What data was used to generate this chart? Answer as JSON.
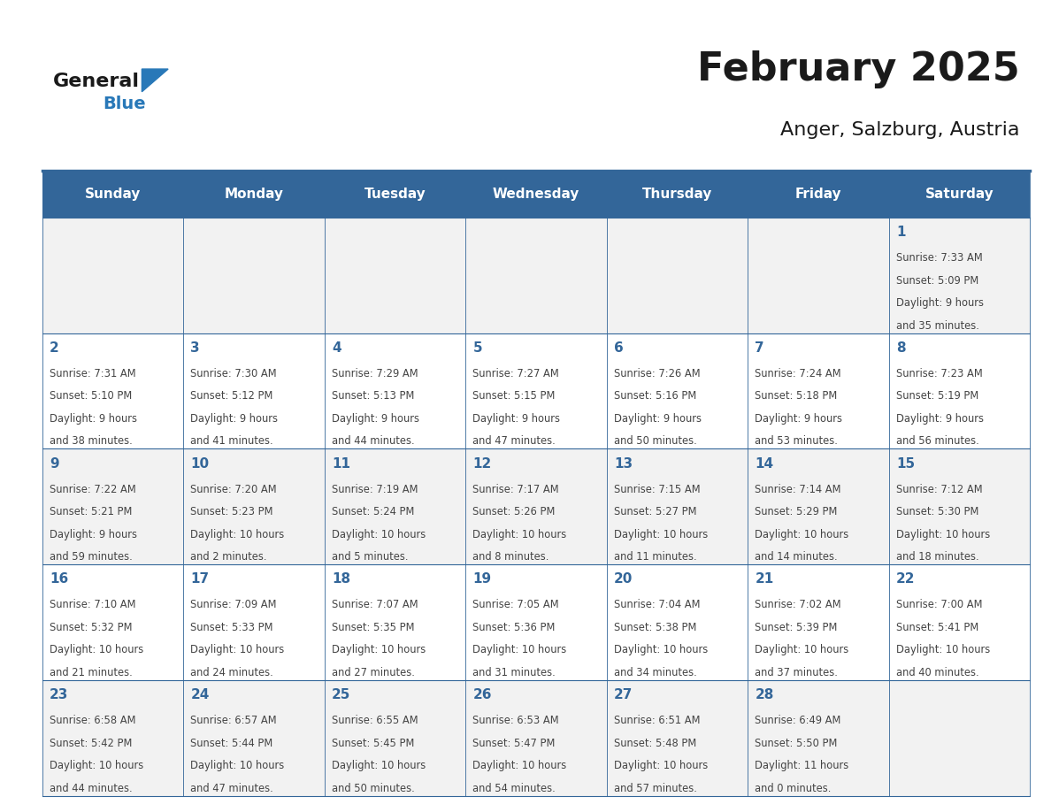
{
  "title": "February 2025",
  "subtitle": "Anger, Salzburg, Austria",
  "header_bg": "#336699",
  "header_text_color": "#ffffff",
  "cell_bg_even": "#f2f2f2",
  "cell_bg_odd": "#ffffff",
  "day_number_color": "#336699",
  "text_color": "#444444",
  "border_color": "#336699",
  "days_of_week": [
    "Sunday",
    "Monday",
    "Tuesday",
    "Wednesday",
    "Thursday",
    "Friday",
    "Saturday"
  ],
  "logo_general_color": "#1a1a1a",
  "logo_blue_color": "#2878b8",
  "calendar_data": [
    [
      null,
      null,
      null,
      null,
      null,
      null,
      {
        "day": 1,
        "sunrise": "7:33 AM",
        "sunset": "5:09 PM",
        "daylight": "9 hours",
        "daylight2": "and 35 minutes."
      }
    ],
    [
      {
        "day": 2,
        "sunrise": "7:31 AM",
        "sunset": "5:10 PM",
        "daylight": "9 hours",
        "daylight2": "and 38 minutes."
      },
      {
        "day": 3,
        "sunrise": "7:30 AM",
        "sunset": "5:12 PM",
        "daylight": "9 hours",
        "daylight2": "and 41 minutes."
      },
      {
        "day": 4,
        "sunrise": "7:29 AM",
        "sunset": "5:13 PM",
        "daylight": "9 hours",
        "daylight2": "and 44 minutes."
      },
      {
        "day": 5,
        "sunrise": "7:27 AM",
        "sunset": "5:15 PM",
        "daylight": "9 hours",
        "daylight2": "and 47 minutes."
      },
      {
        "day": 6,
        "sunrise": "7:26 AM",
        "sunset": "5:16 PM",
        "daylight": "9 hours",
        "daylight2": "and 50 minutes."
      },
      {
        "day": 7,
        "sunrise": "7:24 AM",
        "sunset": "5:18 PM",
        "daylight": "9 hours",
        "daylight2": "and 53 minutes."
      },
      {
        "day": 8,
        "sunrise": "7:23 AM",
        "sunset": "5:19 PM",
        "daylight": "9 hours",
        "daylight2": "and 56 minutes."
      }
    ],
    [
      {
        "day": 9,
        "sunrise": "7:22 AM",
        "sunset": "5:21 PM",
        "daylight": "9 hours",
        "daylight2": "and 59 minutes."
      },
      {
        "day": 10,
        "sunrise": "7:20 AM",
        "sunset": "5:23 PM",
        "daylight": "10 hours",
        "daylight2": "and 2 minutes."
      },
      {
        "day": 11,
        "sunrise": "7:19 AM",
        "sunset": "5:24 PM",
        "daylight": "10 hours",
        "daylight2": "and 5 minutes."
      },
      {
        "day": 12,
        "sunrise": "7:17 AM",
        "sunset": "5:26 PM",
        "daylight": "10 hours",
        "daylight2": "and 8 minutes."
      },
      {
        "day": 13,
        "sunrise": "7:15 AM",
        "sunset": "5:27 PM",
        "daylight": "10 hours",
        "daylight2": "and 11 minutes."
      },
      {
        "day": 14,
        "sunrise": "7:14 AM",
        "sunset": "5:29 PM",
        "daylight": "10 hours",
        "daylight2": "and 14 minutes."
      },
      {
        "day": 15,
        "sunrise": "7:12 AM",
        "sunset": "5:30 PM",
        "daylight": "10 hours",
        "daylight2": "and 18 minutes."
      }
    ],
    [
      {
        "day": 16,
        "sunrise": "7:10 AM",
        "sunset": "5:32 PM",
        "daylight": "10 hours",
        "daylight2": "and 21 minutes."
      },
      {
        "day": 17,
        "sunrise": "7:09 AM",
        "sunset": "5:33 PM",
        "daylight": "10 hours",
        "daylight2": "and 24 minutes."
      },
      {
        "day": 18,
        "sunrise": "7:07 AM",
        "sunset": "5:35 PM",
        "daylight": "10 hours",
        "daylight2": "and 27 minutes."
      },
      {
        "day": 19,
        "sunrise": "7:05 AM",
        "sunset": "5:36 PM",
        "daylight": "10 hours",
        "daylight2": "and 31 minutes."
      },
      {
        "day": 20,
        "sunrise": "7:04 AM",
        "sunset": "5:38 PM",
        "daylight": "10 hours",
        "daylight2": "and 34 minutes."
      },
      {
        "day": 21,
        "sunrise": "7:02 AM",
        "sunset": "5:39 PM",
        "daylight": "10 hours",
        "daylight2": "and 37 minutes."
      },
      {
        "day": 22,
        "sunrise": "7:00 AM",
        "sunset": "5:41 PM",
        "daylight": "10 hours",
        "daylight2": "and 40 minutes."
      }
    ],
    [
      {
        "day": 23,
        "sunrise": "6:58 AM",
        "sunset": "5:42 PM",
        "daylight": "10 hours",
        "daylight2": "and 44 minutes."
      },
      {
        "day": 24,
        "sunrise": "6:57 AM",
        "sunset": "5:44 PM",
        "daylight": "10 hours",
        "daylight2": "and 47 minutes."
      },
      {
        "day": 25,
        "sunrise": "6:55 AM",
        "sunset": "5:45 PM",
        "daylight": "10 hours",
        "daylight2": "and 50 minutes."
      },
      {
        "day": 26,
        "sunrise": "6:53 AM",
        "sunset": "5:47 PM",
        "daylight": "10 hours",
        "daylight2": "and 54 minutes."
      },
      {
        "day": 27,
        "sunrise": "6:51 AM",
        "sunset": "5:48 PM",
        "daylight": "10 hours",
        "daylight2": "and 57 minutes."
      },
      {
        "day": 28,
        "sunrise": "6:49 AM",
        "sunset": "5:50 PM",
        "daylight": "11 hours",
        "daylight2": "and 0 minutes."
      },
      null
    ]
  ]
}
